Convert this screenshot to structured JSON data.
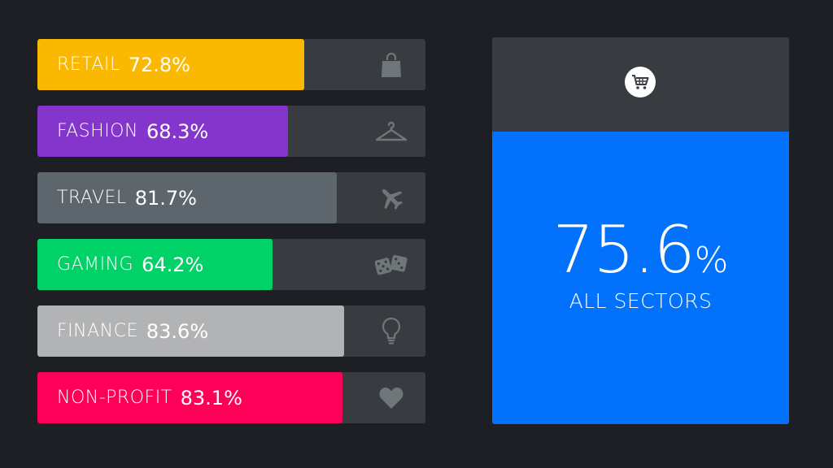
{
  "chart_data": {
    "type": "bar",
    "orientation": "horizontal",
    "categories": [
      "RETAIL",
      "FASHION",
      "TRAVEL",
      "GAMING",
      "FINANCE",
      "NON-PROFIT"
    ],
    "values": [
      72.8,
      68.3,
      81.7,
      64.2,
      83.6,
      83.1
    ],
    "value_labels": [
      "72.8%",
      "68.3%",
      "81.7%",
      "64.2%",
      "83.6%",
      "83.1%"
    ],
    "colors": [
      "#fbb800",
      "#8436cc",
      "#5c666c",
      "#00d267",
      "#b2b3b5",
      "#ff0058"
    ],
    "icons": [
      "shopping-bag-icon",
      "hanger-icon",
      "airplane-icon",
      "dice-icon",
      "lightbulb-icon",
      "heart-icon"
    ],
    "xlim": [
      0,
      100
    ],
    "summary": {
      "number": "75.6",
      "unit": "%",
      "value": 75.6,
      "label": "ALL SECTORS",
      "color": "#0271fb",
      "icon": "shopping-cart-icon"
    }
  },
  "colors": {
    "background": "#1e1f24",
    "track": "#383c40",
    "icon": "#6f7679"
  }
}
